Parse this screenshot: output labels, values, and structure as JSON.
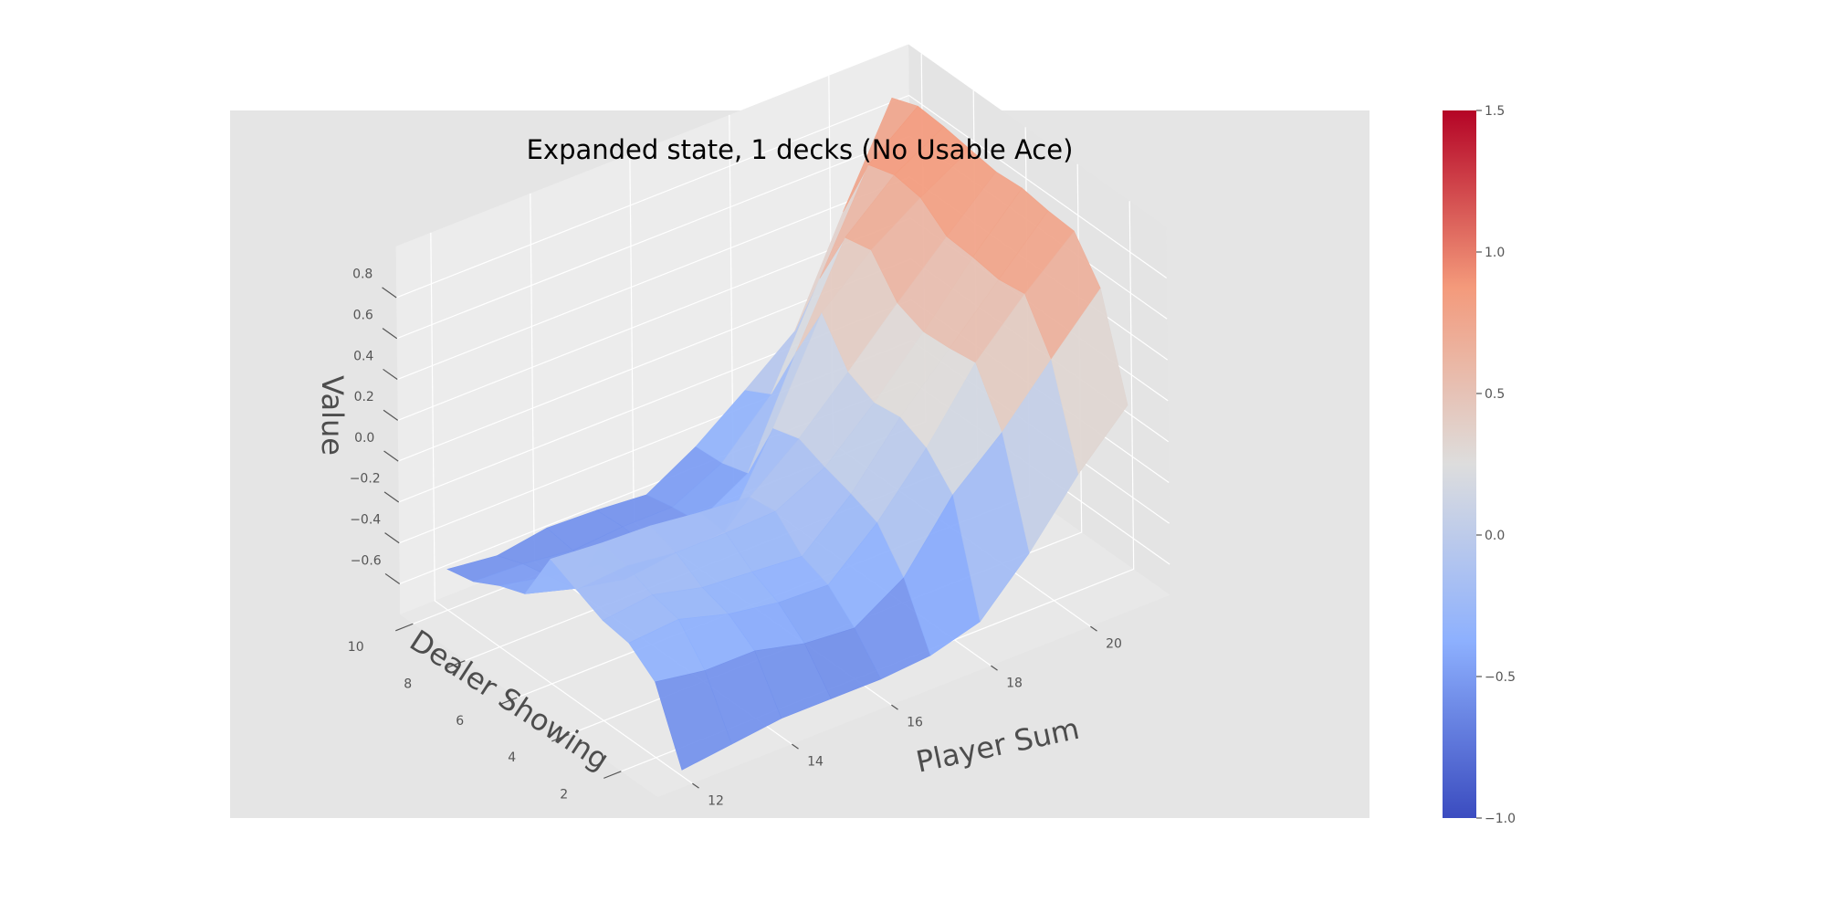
{
  "chart_data": {
    "type": "surface3d",
    "title": "Expanded state, 1 decks (No Usable Ace)",
    "xlabel": "Player Sum",
    "ylabel": "Dealer Showing",
    "zlabel": "Value",
    "x_ticks": [
      "12",
      "14",
      "16",
      "18",
      "20"
    ],
    "y_ticks": [
      "2",
      "4",
      "6",
      "8",
      "10"
    ],
    "z_ticks": [
      "−0.6",
      "−0.4",
      "−0.2",
      "0.0",
      "0.2",
      "0.4",
      "0.6",
      "0.8"
    ],
    "x": [
      12,
      13,
      14,
      15,
      16,
      17,
      18,
      19,
      20,
      21
    ],
    "y": [
      1,
      2,
      3,
      4,
      5,
      6,
      7,
      8,
      9,
      10
    ],
    "z": [
      [
        -0.72,
        -0.69,
        -0.66,
        -0.66,
        -0.66,
        -0.64,
        -0.57,
        -0.33,
        -0.04,
        0.2
      ],
      [
        -0.38,
        -0.42,
        -0.42,
        -0.48,
        -0.5,
        -0.35,
        -0.04,
        0.17,
        0.43,
        0.68
      ],
      [
        -0.28,
        -0.26,
        -0.33,
        -0.37,
        -0.38,
        -0.17,
        0.1,
        0.42,
        0.66,
        0.87
      ],
      [
        -0.26,
        -0.23,
        -0.29,
        -0.31,
        -0.33,
        -0.12,
        0.16,
        0.4,
        0.64,
        0.88
      ],
      [
        -0.2,
        -0.18,
        -0.21,
        -0.21,
        -0.2,
        -0.08,
        0.14,
        0.39,
        0.66,
        0.9
      ],
      [
        -0.14,
        -0.16,
        -0.17,
        -0.2,
        -0.22,
        -0.03,
        0.2,
        0.44,
        0.67,
        0.89
      ],
      [
        -0.4,
        -0.47,
        -0.52,
        -0.49,
        -0.48,
        -0.07,
        0.4,
        0.61,
        0.77,
        0.91
      ],
      [
        -0.45,
        -0.5,
        -0.54,
        -0.55,
        -0.52,
        -0.38,
        0.12,
        0.58,
        0.79,
        0.93
      ],
      [
        -0.52,
        -0.53,
        -0.56,
        -0.54,
        -0.54,
        -0.42,
        -0.18,
        0.29,
        0.75,
        0.94
      ],
      [
        -0.55,
        -0.58,
        -0.54,
        -0.55,
        -0.57,
        -0.43,
        -0.25,
        -0.06,
        0.43,
        0.89
      ]
    ],
    "colormap": "coolwarm",
    "colorbar": {
      "ticks": [
        "−1.0",
        "−0.5",
        "0.0",
        "0.5",
        "1.0",
        "1.5"
      ],
      "range": [
        -1.0,
        1.5
      ]
    },
    "zlim": [
      -0.75,
      0.95
    ]
  },
  "colors": {
    "panel_background": "#e5e5e5",
    "pane_left": "#e4e4e4",
    "pane_back": "#ececec",
    "pane_floor": "#e8e8e8",
    "grid": "#ffffff",
    "tick_text": "#555555",
    "label_text": "#4d4d4d",
    "title_text": "#000000",
    "cmap_low": "#3b4cc0",
    "cmap_mid": "#dddddd",
    "cmap_high": "#b40426"
  }
}
